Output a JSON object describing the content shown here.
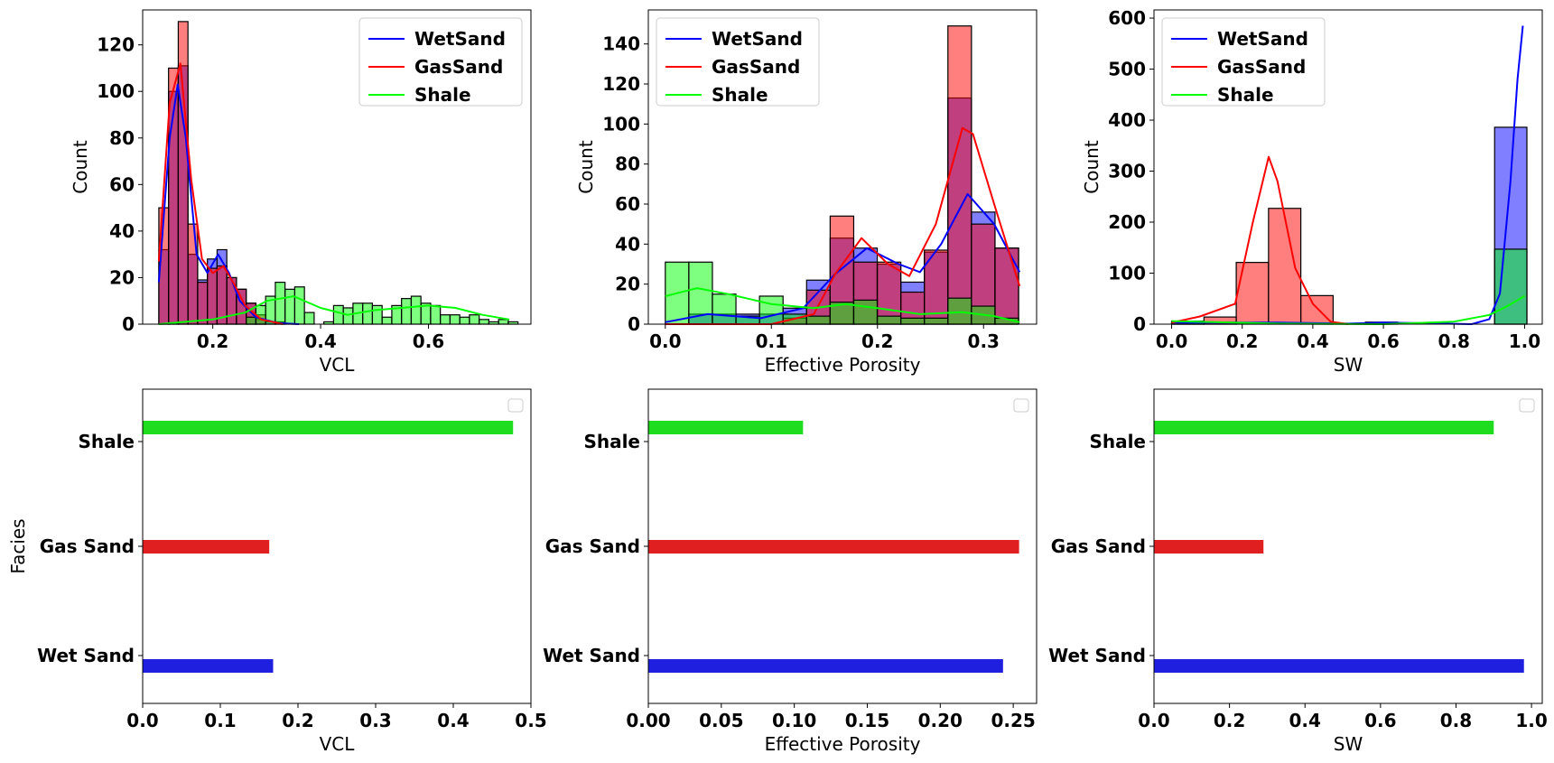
{
  "series_colors": {
    "WetSand": "#0000ff",
    "GasSand": "#ff0000",
    "Shale": "#00ff00"
  },
  "bar_colors": {
    "Wet Sand": "#1f1fe0",
    "Gas Sand": "#e02020",
    "Shale": "#1fdc1f"
  },
  "chart_data": [
    {
      "type": "histogram",
      "title": "",
      "xlabel": "VCL",
      "ylabel": "Count",
      "xlim": [
        0.07,
        0.79
      ],
      "ylim": [
        0,
        135
      ],
      "xticks": [
        "0.2",
        "0.4",
        "0.6"
      ],
      "xtick_values": [
        0.2,
        0.4,
        0.6
      ],
      "yticks": [
        "0",
        "20",
        "40",
        "60",
        "80",
        "100",
        "120"
      ],
      "ytick_values": [
        0,
        20,
        40,
        60,
        80,
        100,
        120
      ],
      "legend": [
        "WetSand",
        "GasSand",
        "Shale"
      ],
      "legend_position": "top-right",
      "series": [
        {
          "name": "WetSand",
          "bin_start": 0.1,
          "bin_width": 0.018,
          "counts": [
            32,
            100,
            111,
            30,
            19,
            28,
            32,
            20,
            15,
            9,
            2,
            1,
            1,
            0,
            0,
            0,
            0,
            0,
            0,
            0,
            0,
            0,
            0,
            0,
            0,
            0,
            0,
            0,
            0,
            0,
            0,
            0,
            0,
            0,
            0,
            0,
            0
          ],
          "kde_x": [
            0.1,
            0.12,
            0.135,
            0.15,
            0.17,
            0.19,
            0.21,
            0.23,
            0.25,
            0.28,
            0.32,
            0.36
          ],
          "kde_y": [
            18,
            80,
            103,
            80,
            30,
            22,
            30,
            22,
            10,
            3,
            0.5,
            0
          ]
        },
        {
          "name": "GasSand",
          "bin_start": 0.1,
          "bin_width": 0.018,
          "counts": [
            50,
            110,
            130,
            43,
            18,
            24,
            25,
            20,
            15,
            9,
            4,
            0,
            0,
            0,
            0,
            0,
            0,
            0,
            0,
            0,
            0,
            0,
            0,
            0,
            0,
            0,
            0,
            0,
            0,
            0,
            0,
            0,
            0,
            0,
            0,
            0,
            0
          ],
          "kde_x": [
            0.1,
            0.12,
            0.14,
            0.16,
            0.18,
            0.2,
            0.22,
            0.24,
            0.26,
            0.29,
            0.33
          ],
          "kde_y": [
            27,
            95,
            112,
            62,
            28,
            22,
            25,
            17,
            8,
            2,
            0
          ]
        },
        {
          "name": "Shale",
          "bin_start": 0.1,
          "bin_width": 0.018,
          "counts": [
            0,
            0,
            0,
            0,
            0,
            0,
            0,
            0,
            0,
            3,
            8,
            12,
            18,
            15,
            16,
            5,
            0,
            1,
            8,
            7,
            9,
            9,
            8,
            3,
            8,
            11,
            12,
            9,
            8,
            4,
            4,
            3,
            4,
            2,
            1,
            2,
            1
          ],
          "kde_x": [
            0.1,
            0.2,
            0.26,
            0.3,
            0.35,
            0.4,
            0.45,
            0.5,
            0.55,
            0.6,
            0.65,
            0.7,
            0.75
          ],
          "kde_y": [
            0,
            2,
            5,
            10,
            12,
            7,
            4,
            6,
            7,
            8,
            7,
            4,
            2
          ]
        }
      ]
    },
    {
      "type": "histogram",
      "title": "",
      "xlabel": "Effective Porosity",
      "ylabel": "Count",
      "xlim": [
        -0.016,
        0.35
      ],
      "ylim": [
        0,
        157
      ],
      "xticks": [
        "0.0",
        "0.1",
        "0.2",
        "0.3"
      ],
      "xtick_values": [
        0.0,
        0.1,
        0.2,
        0.3
      ],
      "yticks": [
        "0",
        "20",
        "40",
        "60",
        "80",
        "100",
        "120",
        "140"
      ],
      "ytick_values": [
        0,
        20,
        40,
        60,
        80,
        100,
        120,
        140
      ],
      "legend": [
        "WetSand",
        "GasSand",
        "Shale"
      ],
      "legend_position": "top-left",
      "series": [
        {
          "name": "WetSand",
          "bin_start": 0.0,
          "bin_width": 0.0222,
          "counts": [
            0,
            5,
            5,
            5,
            5,
            8,
            22,
            43,
            38,
            30,
            21,
            36,
            113,
            56,
            38
          ],
          "kde_x": [
            0.0,
            0.04,
            0.09,
            0.13,
            0.16,
            0.19,
            0.22,
            0.24,
            0.26,
            0.285,
            0.31,
            0.334
          ],
          "kde_y": [
            1,
            5,
            3,
            8,
            25,
            38,
            30,
            26,
            40,
            65,
            50,
            26
          ]
        },
        {
          "name": "GasSand",
          "bin_start": 0.0,
          "bin_width": 0.0222,
          "counts": [
            0,
            0,
            0,
            0,
            0,
            3,
            17,
            54,
            31,
            31,
            16,
            37,
            149,
            50,
            38
          ],
          "kde_x": [
            0.0,
            0.1,
            0.14,
            0.16,
            0.185,
            0.21,
            0.23,
            0.255,
            0.28,
            0.29,
            0.31,
            0.334
          ],
          "kde_y": [
            0,
            0,
            5,
            25,
            43,
            30,
            24,
            50,
            98,
            95,
            60,
            19
          ]
        },
        {
          "name": "Shale",
          "bin_start": 0.0,
          "bin_width": 0.0222,
          "counts": [
            31,
            31,
            15,
            4,
            14,
            5,
            4,
            11,
            12,
            4,
            3,
            3,
            13,
            9,
            3
          ],
          "kde_x": [
            0.0,
            0.03,
            0.06,
            0.1,
            0.14,
            0.17,
            0.2,
            0.24,
            0.28,
            0.31,
            0.334
          ],
          "kde_y": [
            14,
            18,
            15,
            10,
            8,
            10,
            8,
            5,
            6,
            4,
            1
          ]
        }
      ]
    },
    {
      "type": "histogram",
      "title": "",
      "xlabel": "SW",
      "ylabel": "Count",
      "xlim": [
        -0.05,
        1.05
      ],
      "ylim": [
        0,
        616
      ],
      "xticks": [
        "0.0",
        "0.2",
        "0.4",
        "0.6",
        "0.8",
        "1.0"
      ],
      "xtick_values": [
        0.0,
        0.2,
        0.4,
        0.6,
        0.8,
        1.0
      ],
      "yticks": [
        "0",
        "100",
        "200",
        "300",
        "400",
        "500",
        "600"
      ],
      "ytick_values": [
        0,
        100,
        200,
        300,
        400,
        500,
        600
      ],
      "legend": [
        "WetSand",
        "GasSand",
        "Shale"
      ],
      "legend_position": "top-left",
      "series": [
        {
          "name": "WetSand",
          "bin_start": 0.0,
          "bin_width": 0.0915,
          "counts": [
            4,
            4,
            0,
            0,
            0,
            0,
            4,
            0,
            0,
            0,
            386
          ],
          "kde_x": [
            0.0,
            0.3,
            0.5,
            0.6,
            0.7,
            0.85,
            0.9,
            0.93,
            0.96,
            0.98,
            0.995
          ],
          "kde_y": [
            3,
            3,
            1,
            3,
            2,
            0,
            10,
            60,
            280,
            480,
            585
          ]
        },
        {
          "name": "GasSand",
          "bin_start": 0.0,
          "bin_width": 0.0915,
          "counts": [
            4,
            14,
            121,
            227,
            56,
            0,
            0,
            0,
            0,
            0,
            0
          ],
          "kde_x": [
            0.0,
            0.08,
            0.18,
            0.23,
            0.275,
            0.3,
            0.35,
            0.4,
            0.45,
            0.5
          ],
          "kde_y": [
            3,
            15,
            40,
            200,
            328,
            280,
            110,
            40,
            5,
            0
          ]
        },
        {
          "name": "Shale",
          "bin_start": 0.0,
          "bin_width": 0.0915,
          "counts": [
            6,
            0,
            0,
            0,
            0,
            0,
            0,
            0,
            0,
            0,
            147
          ],
          "kde_x": [
            0.0,
            0.3,
            0.6,
            0.8,
            0.9,
            0.95,
            1.0
          ],
          "kde_y": [
            6,
            1,
            0,
            5,
            18,
            35,
            55
          ]
        }
      ]
    },
    {
      "type": "bar",
      "orientation": "horizontal",
      "xlabel": "VCL",
      "ylabel": "Facies",
      "xlim": [
        0,
        0.5
      ],
      "xticks": [
        "0.0",
        "0.1",
        "0.2",
        "0.3",
        "0.4",
        "0.5"
      ],
      "xtick_values": [
        0,
        0.1,
        0.2,
        0.3,
        0.4,
        0.5
      ],
      "categories": [
        "Wet Sand",
        "Gas Sand",
        "Shale"
      ],
      "values": [
        0.168,
        0.163,
        0.477
      ],
      "legend": []
    },
    {
      "type": "bar",
      "orientation": "horizontal",
      "xlabel": "Effective Porosity",
      "ylabel": "",
      "xlim": [
        0,
        0.266
      ],
      "xticks": [
        "0.00",
        "0.05",
        "0.10",
        "0.15",
        "0.20",
        "0.25"
      ],
      "xtick_values": [
        0,
        0.05,
        0.1,
        0.15,
        0.2,
        0.25
      ],
      "categories": [
        "Wet Sand",
        "Gas Sand",
        "Shale"
      ],
      "values": [
        0.243,
        0.254,
        0.106
      ],
      "legend": []
    },
    {
      "type": "bar",
      "orientation": "horizontal",
      "xlabel": "SW",
      "ylabel": "",
      "xlim": [
        0,
        1.0285
      ],
      "xticks": [
        "0.0",
        "0.2",
        "0.4",
        "0.6",
        "0.8",
        "1.0"
      ],
      "xtick_values": [
        0,
        0.2,
        0.4,
        0.6,
        0.8,
        1.0
      ],
      "categories": [
        "Wet Sand",
        "Gas Sand",
        "Shale"
      ],
      "values": [
        0.98,
        0.29,
        0.9
      ],
      "legend": []
    }
  ]
}
